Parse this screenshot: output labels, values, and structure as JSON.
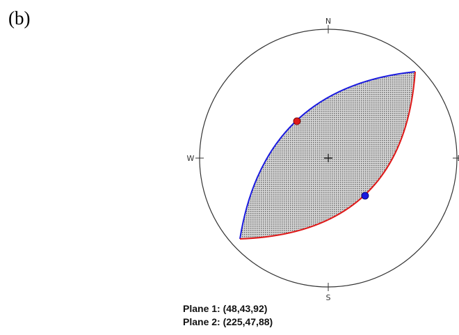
{
  "panel_label": "(b)",
  "compass": {
    "north": "N",
    "east": "E",
    "south": "S",
    "west": "W"
  },
  "planes": [
    "Plane 1: (48,43,92)",
    "Plane 2: (225,47,88)"
  ]
}
